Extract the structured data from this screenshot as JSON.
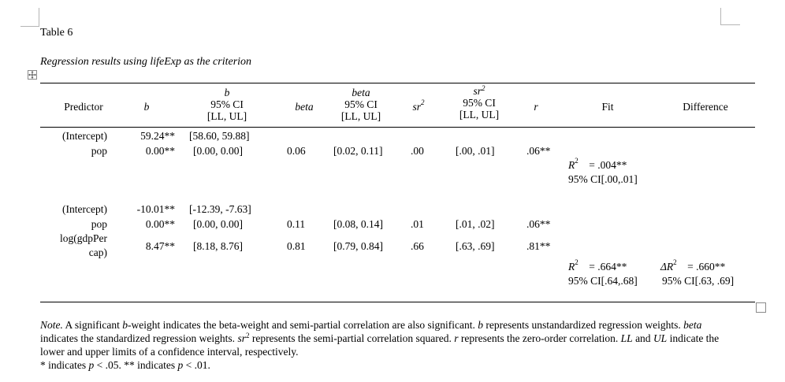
{
  "table_number": "Table 6",
  "table_title": "Regression results using lifeExp as the criterion",
  "header": {
    "predictor": "Predictor",
    "b": "b",
    "b_ci_top": "b",
    "b_ci_mid": "95% CI",
    "b_ci_bot": "[LL, UL]",
    "beta": "beta",
    "beta_ci_top": "beta",
    "beta_ci_mid": "95% CI",
    "beta_ci_bot": "[LL, UL]",
    "sr2_base": "sr",
    "sr2_sup": "2",
    "sr2_ci_top_base": "sr",
    "sr2_ci_top_sup": "2",
    "sr2_ci_mid": "95% CI",
    "sr2_ci_bot": "[LL, UL]",
    "r": "r",
    "fit": "Fit",
    "difference": "Difference"
  },
  "model1": {
    "rows": [
      {
        "predictor": "(Intercept)",
        "b": "59.24**",
        "b_ci": "[58.60, 59.88]",
        "beta": "",
        "beta_ci": "",
        "sr2": "",
        "sr2_ci": "",
        "r": ""
      },
      {
        "predictor": "pop",
        "b": "0.00**",
        "b_ci": "[0.00, 0.00]",
        "beta": "0.06",
        "beta_ci": "[0.02, 0.11]",
        "sr2": ".00",
        "sr2_ci": "[.00, .01]",
        "r": ".06**"
      }
    ],
    "fit_r2_label": "R",
    "fit_r2_sup": "2",
    "fit_r2_value": "= .004**",
    "fit_ci": "95% CI[.00,.01]"
  },
  "model2": {
    "rows": [
      {
        "predictor": "(Intercept)",
        "b": "-10.01**",
        "b_ci": "[-12.39, -7.63]",
        "beta": "",
        "beta_ci": "",
        "sr2": "",
        "sr2_ci": "",
        "r": ""
      },
      {
        "predictor": "pop",
        "b": "0.00**",
        "b_ci": "[0.00, 0.00]",
        "beta": "0.11",
        "beta_ci": "[0.08, 0.14]",
        "sr2": ".01",
        "sr2_ci": "[.01, .02]",
        "r": ".06**"
      },
      {
        "predictor_line1": "log(gdpPer",
        "predictor_line2": "cap)",
        "b": "8.47**",
        "b_ci": "[8.18, 8.76]",
        "beta": "0.81",
        "beta_ci": "[0.79, 0.84]",
        "sr2": ".66",
        "sr2_ci": "[.63, .69]",
        "r": ".81**"
      }
    ],
    "fit_r2_label": "R",
    "fit_r2_sup": "2",
    "fit_r2_value": "= .664**",
    "fit_ci": "95% CI[.64,.68]",
    "diff_label": "ΔR",
    "diff_sup": "2",
    "diff_value": "= .660**",
    "diff_ci": "95% CI[.63, .69]"
  },
  "note": {
    "label": "Note.",
    "t1": " A significant ",
    "b1": "b",
    "t2": "-weight indicates the beta-weight and semi-partial correlation are also significant. ",
    "b2": "b",
    "t3": " represents unstandardized regression weights. ",
    "beta": "beta",
    "t4": " indicates the standardized regression weights. ",
    "sr_base": "sr",
    "sr_sup": "2",
    "t5": " represents the semi-partial correlation squared. ",
    "r": "r",
    "t6": " represents the zero-order correlation. ",
    "ll": "LL",
    "t7": " and ",
    "ul": "UL",
    "t8": " indicate the lower and upper limits of a confidence interval, respectively.",
    "sig1_pre": "* indicates ",
    "sig1_p": "p",
    "sig1_post": " < .05. ** indicates ",
    "sig2_p": "p",
    "sig2_post": " < .01."
  }
}
